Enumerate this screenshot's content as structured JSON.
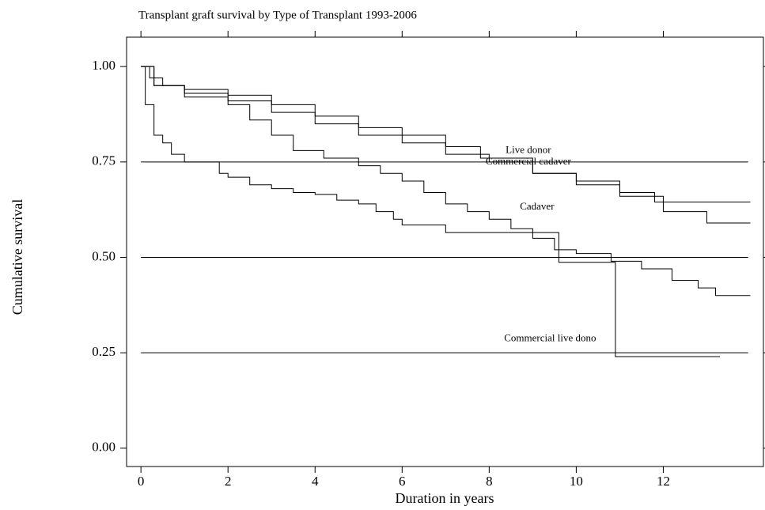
{
  "chart_data": {
    "type": "step",
    "title": "Transplant graft survival by Type of Transplant 1993-2006",
    "x_label": "Duration in years",
    "y_label": "Cumulative survival",
    "xlim": [
      -0.33,
      14.3
    ],
    "ylim": [
      -0.048,
      1.077
    ],
    "xticks": [
      0,
      2,
      4,
      6,
      8,
      10,
      12
    ],
    "yticks": [
      {
        "value": 1,
        "label": "1.00"
      },
      {
        "value": 0.75,
        "label": "0.75"
      },
      {
        "value": 0.5,
        "label": "0.50"
      },
      {
        "value": 0.25,
        "label": "0.25"
      },
      {
        "value": 0,
        "label": "0.00"
      }
    ],
    "reference_lines": [
      0.75,
      0.5,
      0.25
    ],
    "series": [
      {
        "name": "Live donor",
        "color": "#000000",
        "x": [
          0,
          0.2,
          0.5,
          1,
          2,
          3,
          4,
          5,
          6,
          7,
          7.8,
          9,
          10,
          11,
          11.8,
          14
        ],
        "values": [
          1,
          0.97,
          0.95,
          0.94,
          0.925,
          0.9,
          0.87,
          0.84,
          0.82,
          0.79,
          0.76,
          0.72,
          0.7,
          0.67,
          0.645,
          0.645
        ]
      },
      {
        "name": "Commercial cadaver",
        "color": "#000000",
        "x": [
          0,
          0.3,
          1,
          2,
          3,
          4,
          5,
          6,
          7,
          8,
          9,
          10,
          11,
          12,
          13,
          14
        ],
        "values": [
          1,
          0.95,
          0.93,
          0.91,
          0.88,
          0.85,
          0.82,
          0.8,
          0.77,
          0.75,
          0.72,
          0.69,
          0.66,
          0.62,
          0.59,
          0.59
        ]
      },
      {
        "name": "Cadaver",
        "color": "#000000",
        "x": [
          0,
          0.3,
          1,
          2,
          2.5,
          3,
          3.5,
          4.2,
          5,
          5.5,
          6,
          6.5,
          7,
          7.5,
          8,
          8.5,
          9,
          9.5,
          10,
          10.8,
          11.5,
          12.2,
          12.8,
          13.2,
          14
        ],
        "values": [
          1,
          0.95,
          0.92,
          0.9,
          0.86,
          0.82,
          0.78,
          0.76,
          0.74,
          0.72,
          0.7,
          0.67,
          0.64,
          0.62,
          0.6,
          0.575,
          0.55,
          0.52,
          0.51,
          0.49,
          0.47,
          0.44,
          0.42,
          0.4,
          0.4
        ]
      },
      {
        "name": "Commercial live dono",
        "color": "#000000",
        "x": [
          0,
          0.1,
          0.3,
          0.5,
          0.7,
          1,
          1.8,
          2,
          2.5,
          3,
          3.5,
          4,
          4.5,
          5,
          5.4,
          5.8,
          6,
          7,
          9.6,
          10.9,
          13.3
        ],
        "values": [
          1,
          0.9,
          0.82,
          0.8,
          0.77,
          0.75,
          0.72,
          0.71,
          0.69,
          0.68,
          0.67,
          0.665,
          0.65,
          0.64,
          0.62,
          0.6,
          0.585,
          0.565,
          0.487,
          0.24,
          0.24
        ]
      }
    ]
  }
}
